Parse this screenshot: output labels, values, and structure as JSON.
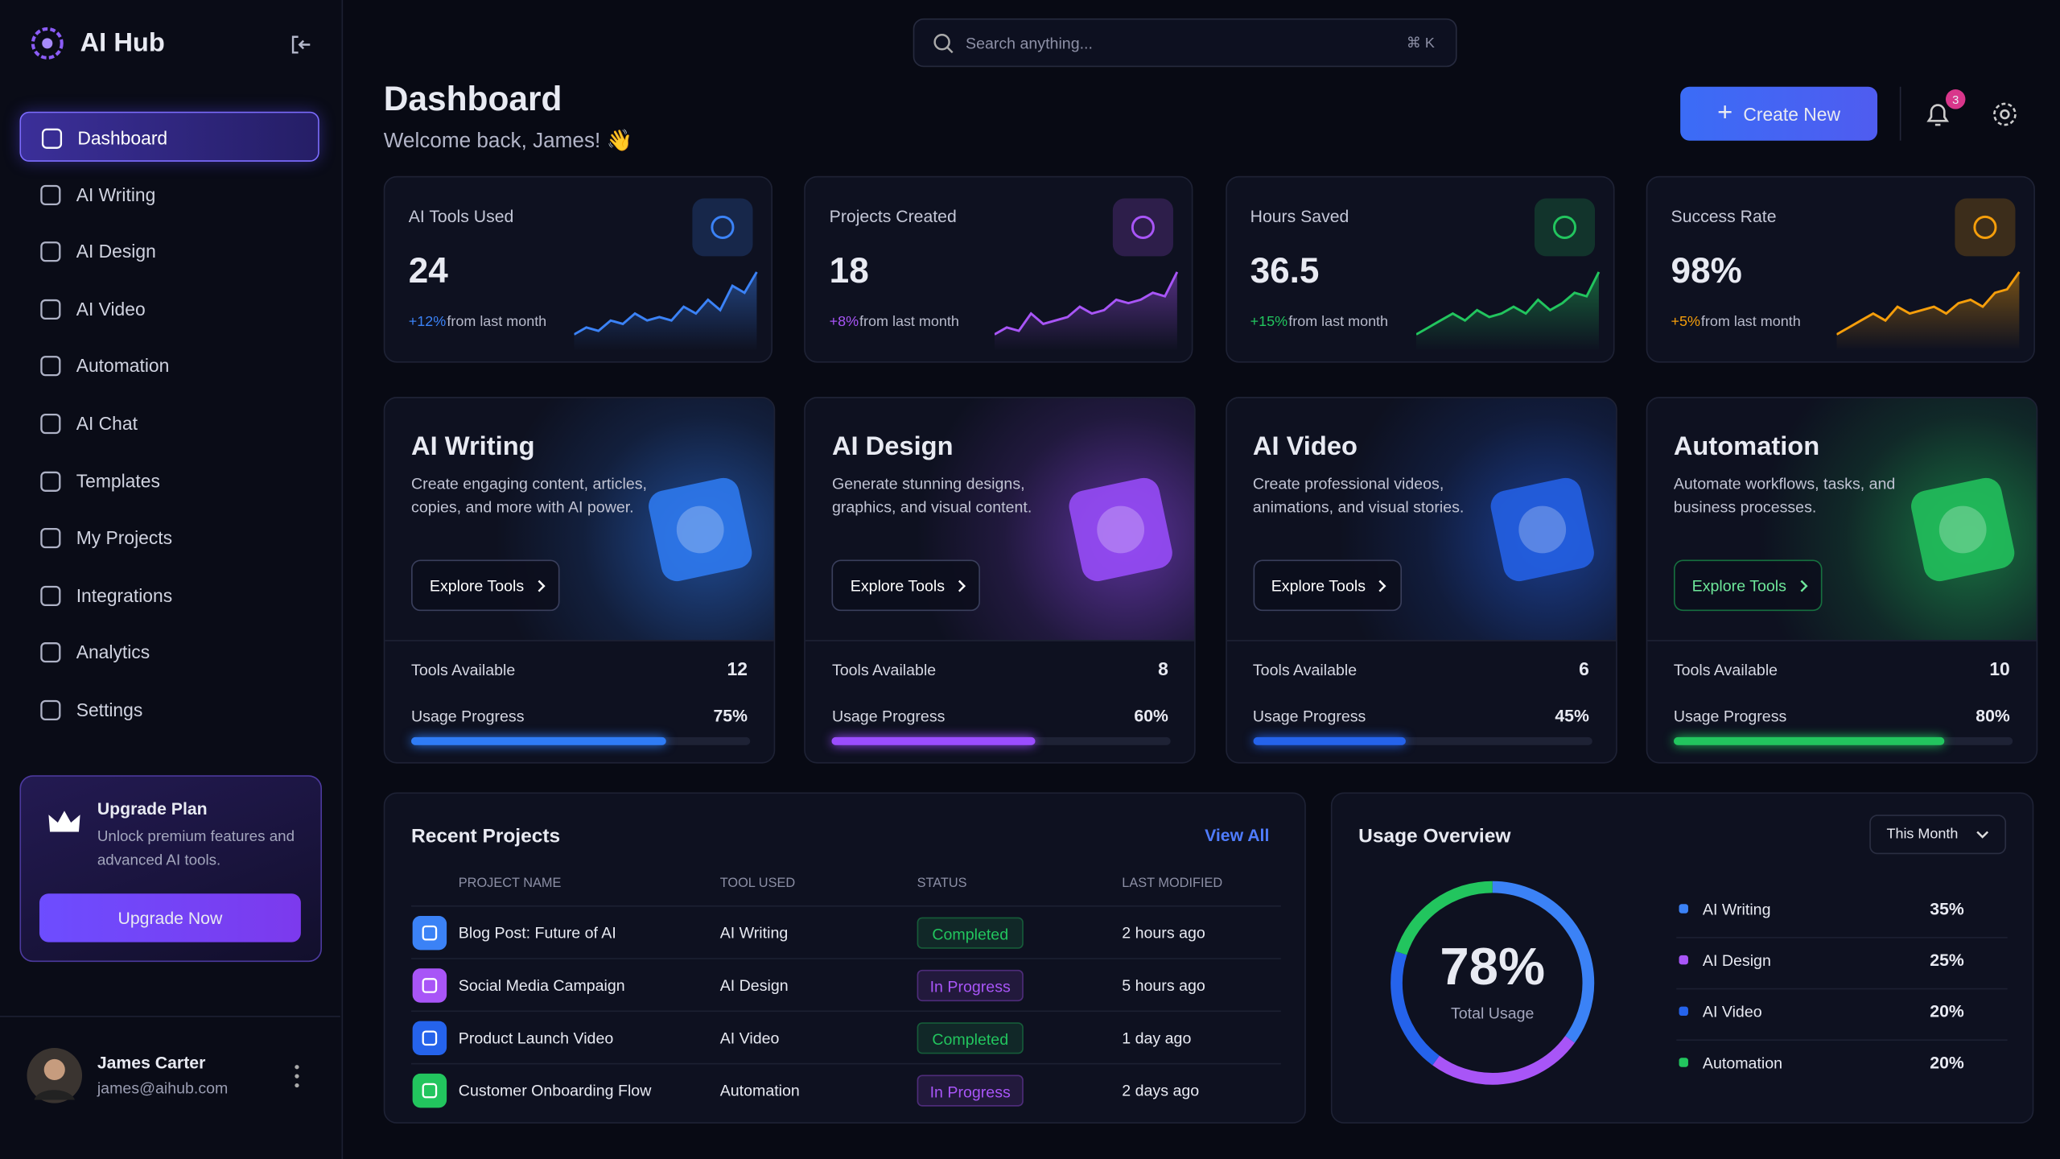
{
  "sidebar": {
    "brand": "AI Hub",
    "nav": [
      "Dashboard",
      "AI Writing",
      "AI Design",
      "AI Video",
      "Automation",
      "AI Chat",
      "Templates",
      "My Projects",
      "Integrations",
      "Analytics",
      "Settings"
    ],
    "upgrade": {
      "title": "Upgrade Plan",
      "text": "Unlock premium features and advanced AI tools.",
      "button": "Upgrade Now"
    },
    "user": {
      "name": "James Carter",
      "email": "james@aihub.com"
    }
  },
  "header": {
    "search": "Search anything...",
    "shortcut": "⌘ K",
    "title": "Dashboard",
    "subtitle": "Welcome back, James! 👋",
    "button": "Create New",
    "notifications": "3"
  },
  "stats": [
    {
      "label": "AI Tools Used",
      "value": "24",
      "change": "+12%",
      "note": "from last month",
      "color": "#3b82f6",
      "trend": [
        2,
        3,
        2.5,
        4,
        3.5,
        5,
        4,
        4.5,
        4,
        6,
        5,
        7,
        5.5,
        9,
        8,
        11
      ]
    },
    {
      "label": "Projects Created",
      "value": "18",
      "change": "+8%",
      "note": "from last month",
      "color": "#a855f7",
      "trend": [
        2,
        3,
        2.5,
        5,
        3.5,
        4,
        4.5,
        6,
        5,
        5.5,
        7,
        6.5,
        7,
        8,
        7.5,
        11
      ]
    },
    {
      "label": "Hours Saved",
      "value": "36.5",
      "change": "+15%",
      "note": "from last month",
      "color": "#22c55e",
      "trend": [
        2,
        3,
        4,
        5,
        4,
        5.5,
        4.5,
        5,
        6,
        5,
        7,
        5.5,
        6.5,
        8,
        7.5,
        11
      ]
    },
    {
      "label": "Success Rate",
      "value": "98%",
      "change": "+5%",
      "note": "from last month",
      "color": "#f59e0b",
      "trend": [
        2,
        3,
        4,
        5,
        4,
        6,
        5,
        5.5,
        6,
        5,
        6.5,
        7,
        6,
        8,
        8.5,
        11
      ]
    }
  ],
  "tools": [
    {
      "title": "AI Writing",
      "description": "Create engaging content, articles, copies, and more with AI power.",
      "button": "Explore Tools",
      "available_label": "Tools Available",
      "available": "12",
      "progress_text": "Usage Progress",
      "progress": 75,
      "progress_label": "75%",
      "color": "#2f7cf6"
    },
    {
      "title": "AI Design",
      "description": "Generate stunning designs, graphics, and visual content.",
      "button": "Explore Tools",
      "available_label": "Tools Available",
      "available": "8",
      "progress_text": "Usage Progress",
      "progress": 60,
      "progress_label": "60%",
      "color": "#9b4dff"
    },
    {
      "title": "AI Video",
      "description": "Create professional videos, animations, and visual stories.",
      "button": "Explore Tools",
      "available_label": "Tools Available",
      "available": "6",
      "progress_text": "Usage Progress",
      "progress": 45,
      "progress_label": "45%",
      "color": "#2563eb"
    },
    {
      "title": "Automation",
      "description": "Automate workflows, tasks, and business processes.",
      "button": "Explore Tools",
      "available_label": "Tools Available",
      "available": "10",
      "progress_text": "Usage Progress",
      "progress": 80,
      "progress_label": "80%",
      "color": "#22c55e"
    }
  ],
  "recent": {
    "title": "Recent Projects",
    "link": "View All",
    "columns": [
      "PROJECT NAME",
      "TOOL USED",
      "STATUS",
      "LAST MODIFIED"
    ],
    "rows": [
      {
        "name": "Blog Post: Future of AI",
        "tool": "AI Writing",
        "status": "Completed",
        "modified": "2 hours ago",
        "color": "#3b82f6",
        "status_color": "#22c55e"
      },
      {
        "name": "Social Media Campaign",
        "tool": "AI Design",
        "status": "In Progress",
        "modified": "5 hours ago",
        "color": "#a855f7",
        "status_color": "#a855f7"
      },
      {
        "name": "Product Launch Video",
        "tool": "AI Video",
        "status": "Completed",
        "modified": "1 day ago",
        "color": "#2563eb",
        "status_color": "#22c55e"
      },
      {
        "name": "Customer Onboarding Flow",
        "tool": "Automation",
        "status": "In Progress",
        "modified": "2 days ago",
        "color": "#22c55e",
        "status_color": "#a855f7"
      }
    ]
  },
  "usage": {
    "title": "Usage Overview",
    "period": "This Month",
    "center": "78%",
    "center_label": "Total Usage",
    "items": [
      {
        "name": "AI Writing",
        "value": 35,
        "label": "35%",
        "color": "#3b82f6"
      },
      {
        "name": "AI Design",
        "value": 25,
        "label": "25%",
        "color": "#a855f7"
      },
      {
        "name": "AI Video",
        "value": 20,
        "label": "20%",
        "color": "#2563eb"
      },
      {
        "name": "Automation",
        "value": 20,
        "label": "20%",
        "color": "#22c55e"
      }
    ]
  }
}
